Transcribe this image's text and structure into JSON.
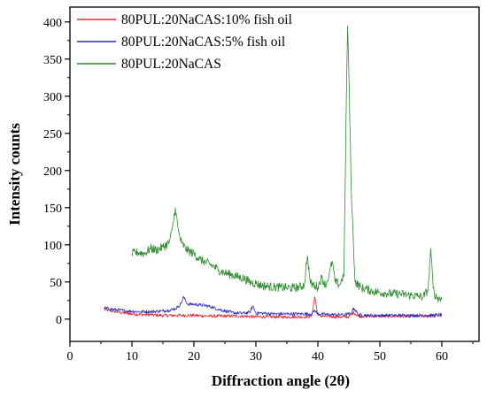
{
  "chart_data": {
    "type": "line",
    "title": "",
    "xlabel": "Diffraction angle (2θ)",
    "ylabel": "Intensity counts",
    "xlim": [
      0,
      66
    ],
    "ylim": [
      -30,
      420
    ],
    "xticks": [
      0,
      10,
      20,
      30,
      40,
      50,
      60
    ],
    "yticks": [
      0,
      50,
      100,
      150,
      200,
      250,
      300,
      350,
      400
    ],
    "grid": false,
    "legend_position": "top-left",
    "series": [
      {
        "name": "80PUL:20NaCAS:10% fish oil",
        "color": "#e8252f",
        "x": [
          5.5,
          8,
          10,
          12,
          15,
          18,
          20,
          22,
          25,
          28,
          30,
          32,
          35,
          38,
          39,
          39.5,
          40,
          41,
          43,
          45,
          45.8,
          46.5,
          48,
          50,
          52,
          55,
          58,
          60
        ],
        "y": [
          13,
          9,
          7,
          6,
          5,
          5,
          5,
          4,
          4,
          4,
          3,
          3,
          3,
          3,
          4,
          30,
          5,
          4,
          3,
          3,
          9,
          4,
          4,
          4,
          4,
          4,
          4,
          5
        ]
      },
      {
        "name": "80PUL:20NaCAS:5% fish oil",
        "color": "#2b2bc4",
        "x": [
          5.5,
          7,
          9,
          11,
          13,
          15,
          16,
          17,
          17.5,
          18,
          18.3,
          19,
          20,
          21,
          22,
          23,
          24,
          25,
          26,
          27,
          28,
          29,
          29.5,
          30,
          31,
          33,
          35,
          37,
          39,
          39.5,
          40,
          42,
          44,
          45.3,
          45.8,
          46.5,
          48,
          50,
          52,
          55,
          58,
          60
        ],
        "y": [
          15,
          13,
          11,
          10,
          10,
          11,
          12,
          14,
          17,
          22,
          30,
          20,
          20,
          19,
          18,
          16,
          13,
          11,
          9,
          8,
          8,
          9,
          18,
          8,
          8,
          7,
          7,
          7,
          7,
          12,
          7,
          6,
          6,
          7,
          15,
          6,
          5,
          5,
          5,
          5,
          5,
          6
        ]
      },
      {
        "name": "80PUL:20NaCAS",
        "color": "#2e8b2e",
        "x": [
          10,
          11,
          12,
          13,
          14,
          15,
          16,
          16.5,
          17,
          17.5,
          18,
          19,
          20,
          21,
          22,
          23,
          24,
          25,
          26,
          27,
          28,
          29,
          30,
          31,
          32,
          33,
          34,
          35,
          36,
          37,
          37.8,
          38.3,
          38.8,
          39.5,
          40,
          40.6,
          41.2,
          41.8,
          42.3,
          42.8,
          43.5,
          44.2,
          44.6,
          44.8,
          45,
          45.4,
          46,
          47,
          48,
          49,
          50,
          51,
          52,
          53,
          54,
          55,
          56,
          57,
          57.8,
          58.2,
          58.6,
          59,
          59.5,
          60
        ],
        "y": [
          88,
          90,
          88,
          95,
          93,
          97,
          103,
          120,
          150,
          118,
          102,
          92,
          88,
          80,
          76,
          72,
          66,
          62,
          60,
          57,
          55,
          50,
          48,
          45,
          44,
          43,
          43,
          42,
          42,
          43,
          46,
          85,
          48,
          45,
          43,
          56,
          46,
          58,
          78,
          50,
          46,
          60,
          300,
          395,
          330,
          170,
          50,
          42,
          40,
          37,
          36,
          35,
          34,
          34,
          33,
          32,
          31,
          30,
          40,
          95,
          42,
          30,
          28,
          27
        ]
      }
    ]
  }
}
